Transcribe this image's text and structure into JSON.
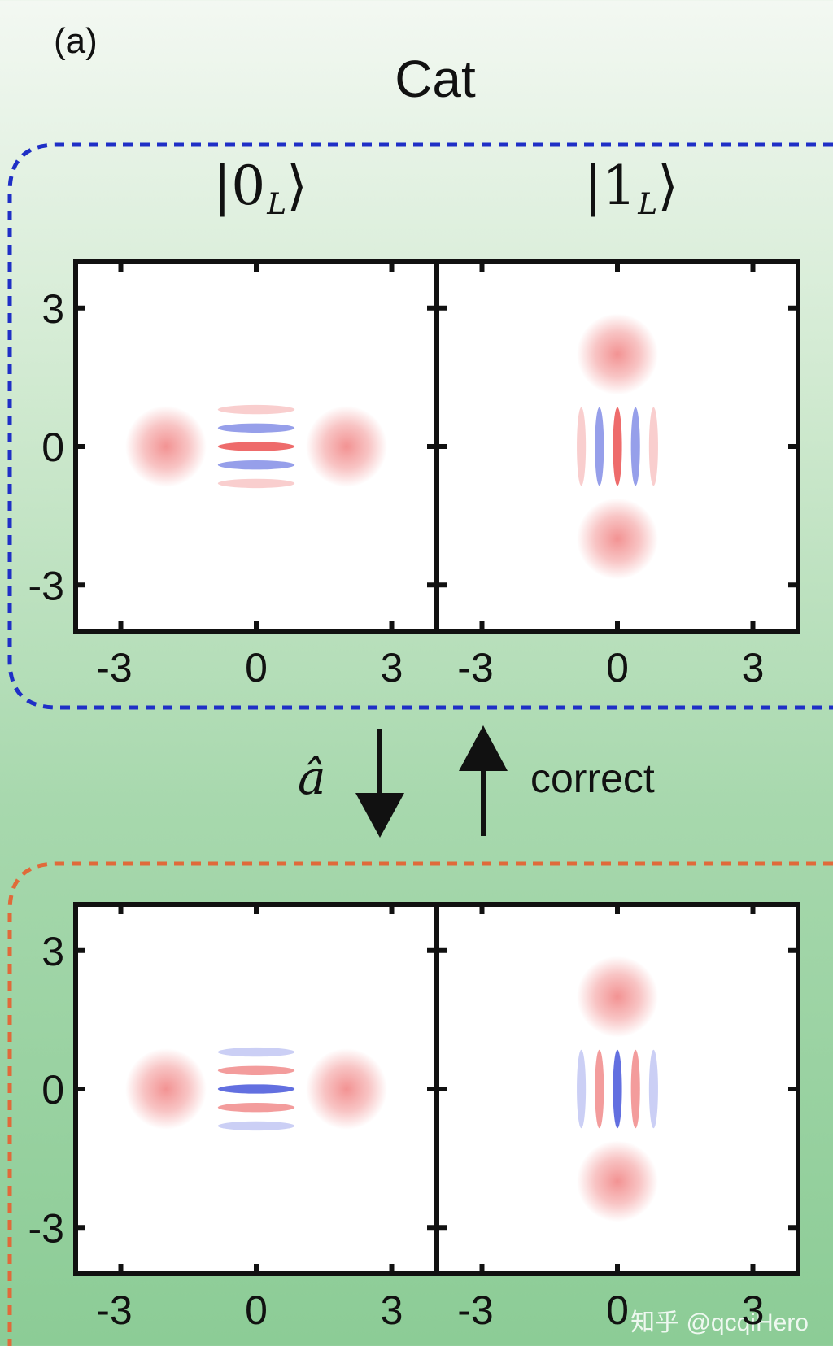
{
  "panel_label": "(a)",
  "title": "Cat",
  "kets": [
    {
      "symbol": "0",
      "subscript": "L"
    },
    {
      "symbol": "1",
      "subscript": "L"
    }
  ],
  "operator_label": "â",
  "correct_label": "correct",
  "watermark": "知乎 @qcqiHero",
  "x_ticks": [
    "-3",
    "0",
    "3"
  ],
  "y_ticks": [
    "3",
    "0",
    "-3"
  ],
  "colors": {
    "positive": "#e83a3a",
    "negative": "#2e3fd6",
    "code_space_border": "#1f2fc6",
    "error_space_border": "#e06a3a",
    "background_top": "#f3f8f2",
    "background_bottom": "#8ccc96"
  },
  "chart_data": {
    "type": "heatmap",
    "axis_range": [
      -4,
      4
    ],
    "ticks": [
      -3,
      0,
      3
    ],
    "panels": [
      {
        "row": "code",
        "state": "0_L",
        "blob_axis": "x",
        "blobs": [
          -2,
          2
        ],
        "center_sign": 1
      },
      {
        "row": "code",
        "state": "1_L",
        "blob_axis": "y",
        "blobs": [
          2,
          -2
        ],
        "center_sign": 1
      },
      {
        "row": "error",
        "state": "0_L",
        "blob_axis": "x",
        "blobs": [
          -2,
          2
        ],
        "center_sign": -1
      },
      {
        "row": "error",
        "state": "1_L",
        "blob_axis": "y",
        "blobs": [
          2,
          -2
        ],
        "center_sign": -1
      }
    ]
  }
}
